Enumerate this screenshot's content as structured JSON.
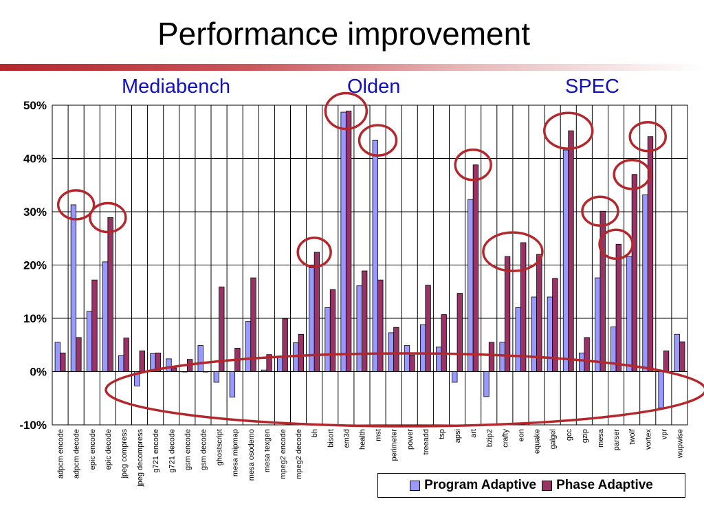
{
  "slide": {
    "title": "Performance improvement",
    "groups": [
      "Mediabench",
      "Olden",
      "SPEC"
    ],
    "accent_color": "#b3282d",
    "group_label_color": "#1010c0"
  },
  "chart_data": {
    "type": "bar",
    "title": "",
    "xlabel": "",
    "ylabel": "",
    "ylim": [
      -10,
      50
    ],
    "yticks": [
      50,
      40,
      30,
      20,
      10,
      0,
      -10
    ],
    "ytick_labels": [
      "50%",
      "40%",
      "30%",
      "20%",
      "10%",
      "0%",
      "-10%"
    ],
    "grid": "vertical and horizontal",
    "legend_position": "bottom-right",
    "categories": [
      "adpcm encode",
      "adpcm decode",
      "epic encode",
      "epic decode",
      "jpeg compress",
      "jpeg decompress",
      "g721 encode",
      "g721 decode",
      "gsm encode",
      "gsm decode",
      "ghostscript",
      "mesa mipmap",
      "mesa osodemo",
      "mesa texgen",
      "mpeg2 encode",
      "mpeg2 decode",
      "bh",
      "bisort",
      "em3d",
      "health",
      "mst",
      "perimeter",
      "power",
      "treeadd",
      "tsp",
      "apsi",
      "art",
      "bzip2",
      "crafty",
      "eon",
      "equake",
      "galgel",
      "gcc",
      "gzip",
      "mesa",
      "parser",
      "twolf",
      "vortex",
      "vpr",
      "wupwise"
    ],
    "series": [
      {
        "name": "Program Adaptive",
        "color": "#9999ff",
        "values": [
          5.5,
          31.3,
          11.3,
          20.6,
          3.0,
          -2.7,
          3.4,
          2.4,
          0.0,
          4.9,
          -2.0,
          -4.8,
          9.4,
          0.3,
          2.7,
          5.4,
          19.5,
          12.0,
          48.7,
          16.1,
          43.4,
          7.3,
          4.9,
          8.8,
          4.6,
          -2.0,
          32.3,
          -4.7,
          5.5,
          12.0,
          14.0,
          14.0,
          41.6,
          3.5,
          17.6,
          8.4,
          21.6,
          33.2,
          -6.8,
          7.0
        ]
      },
      {
        "name": "Phase Adaptive",
        "color": "#993366",
        "values": [
          3.5,
          6.4,
          17.2,
          28.9,
          6.3,
          3.9,
          3.5,
          0.7,
          2.3,
          0.0,
          15.9,
          4.4,
          17.6,
          3.2,
          9.9,
          7.0,
          22.4,
          15.4,
          48.9,
          18.9,
          17.2,
          8.3,
          3.1,
          16.2,
          10.7,
          14.7,
          38.8,
          5.5,
          21.6,
          24.2,
          22.0,
          17.5,
          45.2,
          6.4,
          30.1,
          23.9,
          37.0,
          44.1,
          3.9,
          5.6
        ]
      }
    ],
    "annotations": [
      {
        "type": "circle",
        "around": "adpcm decode"
      },
      {
        "type": "circle",
        "around": "epic decode"
      },
      {
        "type": "circle",
        "around": "bh"
      },
      {
        "type": "circle",
        "around": "em3d"
      },
      {
        "type": "circle",
        "around": "mst"
      },
      {
        "type": "circle",
        "around": "art"
      },
      {
        "type": "circle",
        "around": "crafty, eon"
      },
      {
        "type": "circle",
        "around": "gcc"
      },
      {
        "type": "circle",
        "around": "mesa"
      },
      {
        "type": "circle",
        "around": "parser"
      },
      {
        "type": "circle",
        "around": "twolf"
      },
      {
        "type": "circle",
        "around": "vortex"
      },
      {
        "type": "ellipse",
        "around": "negative values region"
      }
    ]
  }
}
